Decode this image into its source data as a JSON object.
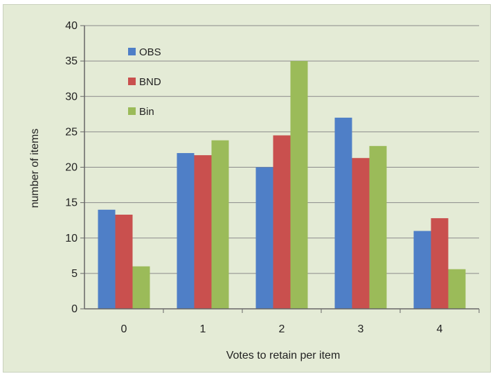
{
  "chart_data": {
    "type": "bar",
    "categories": [
      "0",
      "1",
      "2",
      "3",
      "4"
    ],
    "series": [
      {
        "name": "OBS",
        "values": [
          14,
          22,
          20,
          27,
          11
        ],
        "color": "#4f7fc7"
      },
      {
        "name": "BND",
        "values": [
          13.3,
          21.7,
          24.5,
          21.3,
          12.8
        ],
        "color": "#c9504e"
      },
      {
        "name": "Bin",
        "values": [
          6,
          23.8,
          35,
          23,
          5.6
        ],
        "color": "#9bbb59"
      }
    ],
    "xlabel": "Votes to retain per item",
    "ylabel": "number of items",
    "ylim": [
      0,
      40
    ],
    "yticks": [
      "0",
      "5",
      "10",
      "15",
      "20",
      "25",
      "30",
      "35",
      "40"
    ],
    "grid": true,
    "legend_position": "top-left-inside"
  }
}
